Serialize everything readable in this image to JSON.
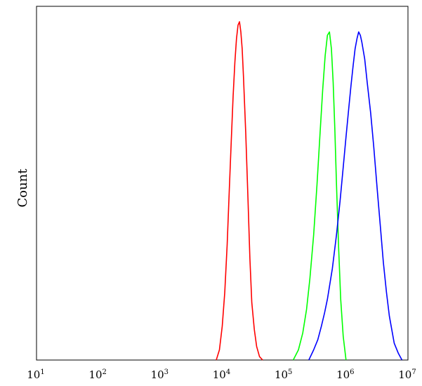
{
  "chart_data": {
    "type": "line",
    "xscale": "log",
    "xlim": [
      10,
      10000000
    ],
    "xlabel": "",
    "ylabel": "Count",
    "ylim": [
      0,
      1
    ],
    "grid": false,
    "legend": "none",
    "x_tick_labels": [
      {
        "base": "10",
        "exp": "1"
      },
      {
        "base": "10",
        "exp": "2"
      },
      {
        "base": "10",
        "exp": "3"
      },
      {
        "base": "10",
        "exp": "4"
      },
      {
        "base": "10",
        "exp": "5"
      },
      {
        "base": "10",
        "exp": "6"
      },
      {
        "base": "10",
        "exp": "7"
      }
    ],
    "x_tick_values": [
      10,
      100,
      1000,
      10000,
      100000,
      1000000,
      10000000
    ],
    "series": [
      {
        "color": "#ff0000",
        "x": [
          8000,
          9000,
          10000,
          11000,
          12000,
          13000,
          14000,
          15000,
          16000,
          17000,
          18000,
          19000,
          20000,
          21000,
          22000,
          24000,
          26000,
          28000,
          30000,
          33000,
          36000,
          40000,
          45000
        ],
        "y": [
          0.0,
          0.03,
          0.1,
          0.2,
          0.34,
          0.5,
          0.65,
          0.78,
          0.88,
          0.95,
          0.99,
          1.0,
          0.97,
          0.92,
          0.84,
          0.67,
          0.48,
          0.3,
          0.17,
          0.09,
          0.04,
          0.01,
          0.0
        ]
      },
      {
        "color": "#00ff00",
        "x": [
          140000,
          170000,
          200000,
          230000,
          260000,
          300000,
          340000,
          380000,
          420000,
          460000,
          500000,
          540000,
          580000,
          620000,
          660000,
          700000,
          760000,
          820000,
          900000,
          1000000
        ],
        "y": [
          0.0,
          0.03,
          0.08,
          0.15,
          0.24,
          0.37,
          0.52,
          0.67,
          0.8,
          0.9,
          0.96,
          0.97,
          0.92,
          0.82,
          0.68,
          0.52,
          0.33,
          0.18,
          0.07,
          0.0
        ]
      },
      {
        "color": "#0000ff",
        "x": [
          250000,
          300000,
          350000,
          400000,
          450000,
          500000,
          600000,
          700000,
          800000,
          900000,
          1000000,
          1100000,
          1200000,
          1300000,
          1400000,
          1500000,
          1600000,
          1700000,
          1800000,
          2000000,
          2200000,
          2500000,
          2800000,
          3200000,
          3600000,
          4000000,
          4500000,
          5000000,
          6000000,
          7000000,
          8000000
        ],
        "y": [
          0.0,
          0.03,
          0.06,
          0.1,
          0.14,
          0.18,
          0.27,
          0.37,
          0.47,
          0.57,
          0.66,
          0.74,
          0.81,
          0.87,
          0.92,
          0.95,
          0.97,
          0.96,
          0.94,
          0.89,
          0.82,
          0.73,
          0.63,
          0.5,
          0.39,
          0.29,
          0.2,
          0.13,
          0.05,
          0.02,
          0.0
        ]
      }
    ]
  }
}
